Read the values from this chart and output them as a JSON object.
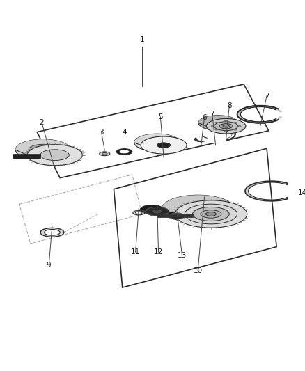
{
  "background_color": "#ffffff",
  "line_color": "#2a2a2a",
  "gray_dark": "#555555",
  "gray_mid": "#888888",
  "gray_light": "#cccccc",
  "gray_very_light": "#e8e8e8",
  "dashed_color": "#aaaaaa",
  "label_color": "#1a1a1a",
  "figsize": [
    4.38,
    5.33
  ],
  "dpi": 100
}
